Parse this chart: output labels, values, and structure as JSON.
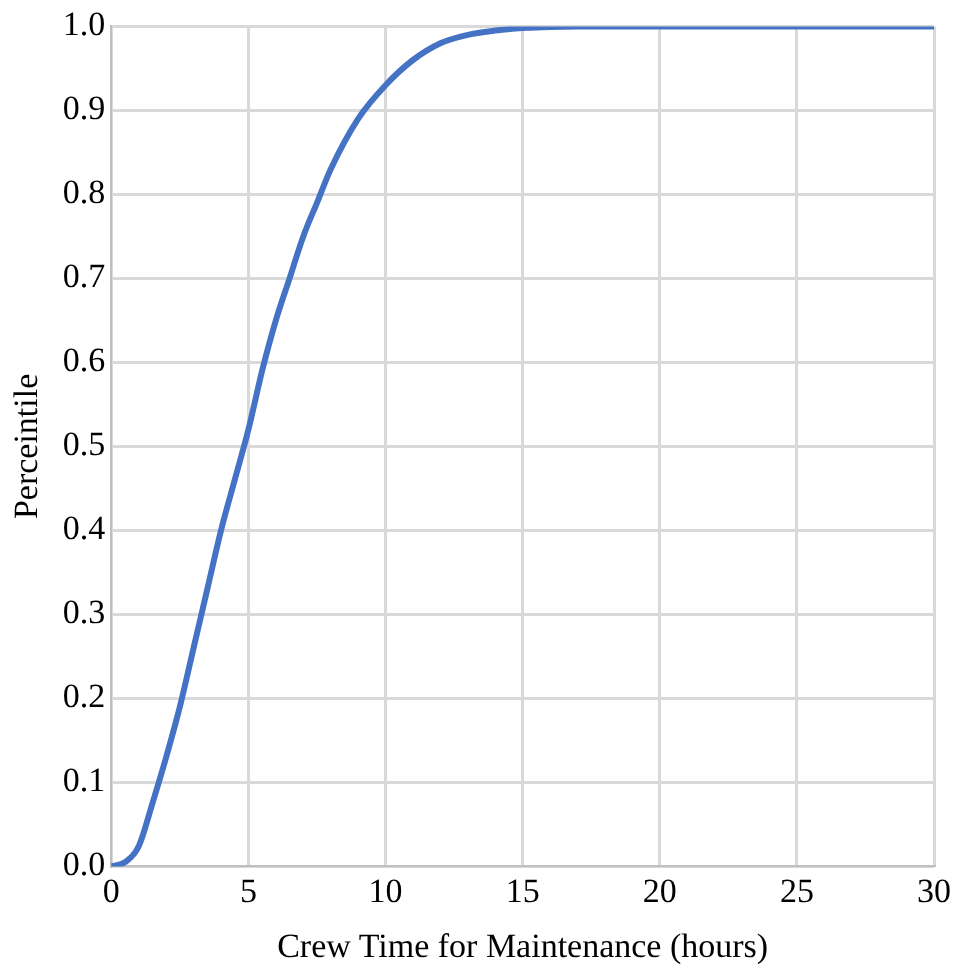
{
  "chart_data": {
    "type": "line",
    "xlabel": "Crew Time for Maintenance (hours)",
    "ylabel": "Perceintile",
    "x": [
      0,
      0.5,
      1,
      1.5,
      2,
      2.5,
      3,
      3.5,
      4,
      4.5,
      5,
      5.5,
      6,
      6.5,
      7,
      7.5,
      8,
      9,
      10,
      11,
      12,
      13,
      14,
      15,
      17,
      20,
      25,
      30
    ],
    "series": [
      {
        "color": "#4472c4",
        "values": [
          0,
          0.005,
          0.024,
          0.075,
          0.13,
          0.19,
          0.26,
          0.33,
          0.4,
          0.46,
          0.52,
          0.59,
          0.65,
          0.7,
          0.75,
          0.79,
          0.83,
          0.89,
          0.93,
          0.96,
          0.98,
          0.99,
          0.995,
          0.998,
          1,
          1,
          1,
          1
        ]
      }
    ],
    "xlim": [
      0,
      30
    ],
    "xticks": [
      0,
      5,
      10,
      15,
      20,
      25,
      30
    ],
    "ylim": [
      0,
      1
    ],
    "yticks": [
      {
        "value": 0,
        "label": "0.0"
      },
      {
        "value": 0.1,
        "label": "0.1"
      },
      {
        "value": 0.2,
        "label": "0.2"
      },
      {
        "value": 0.3,
        "label": "0.3"
      },
      {
        "value": 0.4,
        "label": "0.4"
      },
      {
        "value": 0.5,
        "label": "0.5"
      },
      {
        "value": 0.6,
        "label": "0.6"
      },
      {
        "value": 0.7,
        "label": "0.7"
      },
      {
        "value": 0.8,
        "label": "0.8"
      },
      {
        "value": 0.9,
        "label": "0.9"
      },
      {
        "value": 1,
        "label": "1.0"
      }
    ],
    "grid": true,
    "marker": "none",
    "line_style": "solid"
  }
}
